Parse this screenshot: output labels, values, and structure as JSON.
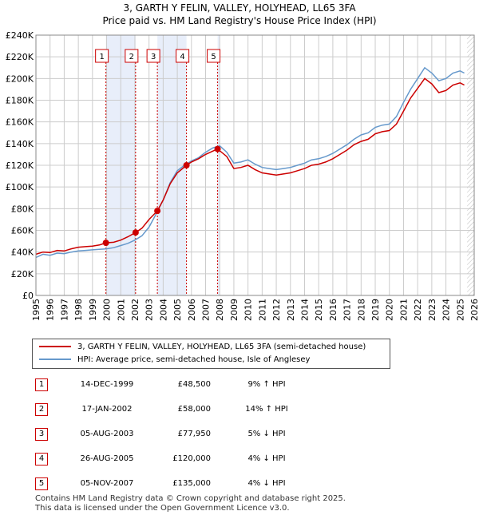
{
  "title": "3, GARTH Y FELIN, VALLEY, HOLYHEAD, LL65 3FA",
  "subtitle": "Price paid vs. HM Land Registry's House Price Index (HPI)",
  "legend": {
    "property_label": "3, GARTH Y FELIN, VALLEY, HOLYHEAD, LL65 3FA (semi-detached house)",
    "hpi_label": "HPI: Average price, semi-detached house, Isle of Anglesey"
  },
  "colors": {
    "property": "#cc0000",
    "hpi": "#6699cc",
    "shade": "#e8eefa",
    "vline": "#cc0000",
    "grid": "#cccccc"
  },
  "transactions": [
    {
      "num": "1",
      "date": "14-DEC-1999",
      "price": "£48,500",
      "hpi": "9% ↑ HPI",
      "year": 1999.95,
      "value": 48500
    },
    {
      "num": "2",
      "date": "17-JAN-2002",
      "price": "£58,000",
      "hpi": "14% ↑ HPI",
      "year": 2002.05,
      "value": 58000
    },
    {
      "num": "3",
      "date": "05-AUG-2003",
      "price": "£77,950",
      "hpi": "5% ↓ HPI",
      "year": 2003.59,
      "value": 77950
    },
    {
      "num": "4",
      "date": "26-AUG-2005",
      "price": "£120,000",
      "hpi": "4% ↓ HPI",
      "year": 2005.65,
      "value": 120000
    },
    {
      "num": "5",
      "date": "05-NOV-2007",
      "price": "£135,000",
      "hpi": "4% ↓ HPI",
      "year": 2007.85,
      "value": 135000
    }
  ],
  "footer": {
    "line1": "Contains HM Land Registry data © Crown copyright and database right 2025.",
    "line2": "This data is licensed under the Open Government Licence v3.0."
  },
  "chart_data": {
    "type": "line",
    "title": "3, GARTH Y FELIN, VALLEY, HOLYHEAD, LL65 3FA",
    "subtitle": "Price paid vs. HM Land Registry's House Price Index (HPI)",
    "xlabel": "",
    "ylabel": "",
    "xlim": [
      1995,
      2026
    ],
    "ylim": [
      0,
      240000
    ],
    "y_ticks": [
      0,
      20000,
      40000,
      60000,
      80000,
      100000,
      120000,
      140000,
      160000,
      180000,
      200000,
      220000,
      240000
    ],
    "y_tick_labels": [
      "£0",
      "£20K",
      "£40K",
      "£60K",
      "£80K",
      "£100K",
      "£120K",
      "£140K",
      "£160K",
      "£180K",
      "£200K",
      "£220K",
      "£240K"
    ],
    "x_ticks": [
      1995,
      1996,
      1997,
      1998,
      1999,
      2000,
      2001,
      2002,
      2003,
      2004,
      2005,
      2006,
      2007,
      2008,
      2009,
      2010,
      2011,
      2012,
      2013,
      2014,
      2015,
      2016,
      2017,
      2018,
      2019,
      2020,
      2021,
      2022,
      2023,
      2024,
      2025,
      2026
    ],
    "x_tick_labels": [
      "1995",
      "1996",
      "1997",
      "1998",
      "1999",
      "2000",
      "2001",
      "2002",
      "2003",
      "2004",
      "2005",
      "2006",
      "2007",
      "2008",
      "2009",
      "2010",
      "2011",
      "2012",
      "2013",
      "2014",
      "2015",
      "2016",
      "2017",
      "2018",
      "2019",
      "2020",
      "2021",
      "2022",
      "2023",
      "2024",
      "2025",
      "2026"
    ],
    "grid": true,
    "hatch_from_year": 2025.5,
    "shaded_ranges": [
      [
        1999.95,
        2002.05
      ],
      [
        2003.59,
        2005.65
      ],
      [
        2007.85,
        2008.0
      ]
    ],
    "series": [
      {
        "name": "HPI: Average price, semi-detached house, Isle of Anglesey",
        "x": [
          1995,
          1995.5,
          1996,
          1996.5,
          1997,
          1997.5,
          1998,
          1998.5,
          1999,
          1999.5,
          2000,
          2000.5,
          2001,
          2001.5,
          2002,
          2002.5,
          2003,
          2003.5,
          2004,
          2004.5,
          2005,
          2005.5,
          2006,
          2006.5,
          2007,
          2007.5,
          2008,
          2008.5,
          2009,
          2009.5,
          2010,
          2010.5,
          2011,
          2011.5,
          2012,
          2012.5,
          2013,
          2013.5,
          2014,
          2014.5,
          2015,
          2015.5,
          2016,
          2016.5,
          2017,
          2017.5,
          2018,
          2018.5,
          2019,
          2019.5,
          2020,
          2020.5,
          2021,
          2021.5,
          2022,
          2022.5,
          2023,
          2023.5,
          2024,
          2024.5,
          2025,
          2025.3
        ],
        "values": [
          35000,
          38000,
          37000,
          39000,
          38500,
          40000,
          41000,
          41500,
          42000,
          42500,
          43000,
          44000,
          46000,
          48000,
          51000,
          55000,
          63000,
          75000,
          88000,
          104000,
          115000,
          120000,
          124000,
          127000,
          132000,
          136000,
          138000,
          132000,
          122000,
          123000,
          125000,
          121000,
          118000,
          117000,
          116000,
          117000,
          118000,
          120000,
          122000,
          125000,
          126000,
          128000,
          131000,
          135000,
          139000,
          144000,
          148000,
          150000,
          155000,
          157000,
          158000,
          165000,
          178000,
          190000,
          200000,
          210000,
          205000,
          198000,
          200000,
          205000,
          207000,
          205000
        ]
      },
      {
        "name": "3, GARTH Y FELIN, VALLEY, HOLYHEAD, LL65 3FA (semi-detached house)",
        "x": [
          1995,
          1995.5,
          1996,
          1996.5,
          1997,
          1997.5,
          1998,
          1998.5,
          1999,
          1999.5,
          1999.95,
          2000.5,
          2001,
          2001.5,
          2002.05,
          2002.5,
          2003,
          2003.59,
          2004,
          2004.5,
          2005,
          2005.65,
          2006,
          2006.5,
          2007,
          2007.5,
          2007.85,
          2008.5,
          2009,
          2009.5,
          2010,
          2010.5,
          2011,
          2011.5,
          2012,
          2012.5,
          2013,
          2013.5,
          2014,
          2014.5,
          2015,
          2015.5,
          2016,
          2016.5,
          2017,
          2017.5,
          2018,
          2018.5,
          2019,
          2019.5,
          2020,
          2020.5,
          2021,
          2021.5,
          2022,
          2022.5,
          2023,
          2023.5,
          2024,
          2024.5,
          2025,
          2025.3
        ],
        "values": [
          38000,
          40000,
          39500,
          41500,
          41000,
          43000,
          44500,
          45000,
          45500,
          46500,
          48500,
          49000,
          51000,
          54000,
          58000,
          62000,
          70000,
          77950,
          88000,
          103000,
          113000,
          120000,
          123000,
          126000,
          130000,
          133000,
          135000,
          128000,
          117000,
          118000,
          120000,
          116000,
          113000,
          112000,
          111000,
          112000,
          113000,
          115000,
          117000,
          120000,
          121000,
          123000,
          126000,
          130000,
          134000,
          139000,
          142000,
          144000,
          149000,
          151000,
          152000,
          158000,
          170000,
          182000,
          191000,
          200000,
          195000,
          187000,
          189000,
          194000,
          196000,
          194000
        ]
      }
    ]
  }
}
